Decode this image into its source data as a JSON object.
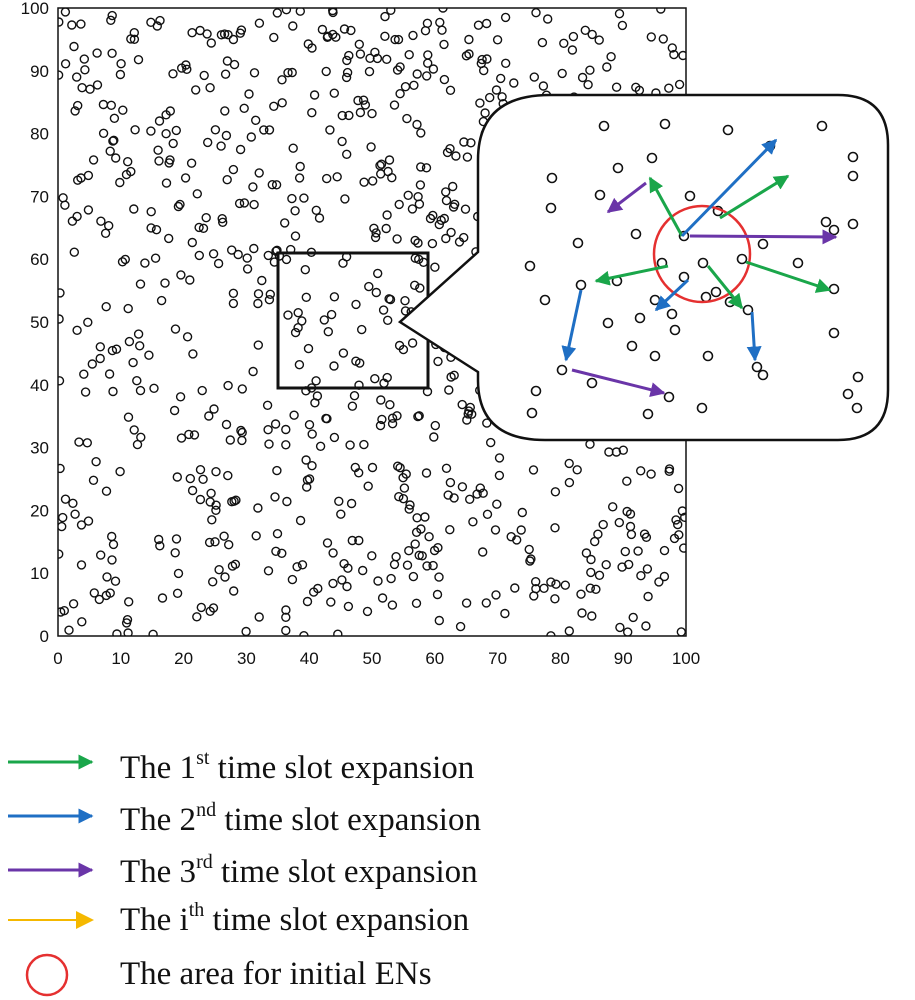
{
  "chart_data": {
    "type": "scatter",
    "title": "",
    "xlabel": "",
    "ylabel": "",
    "xlim": [
      0,
      100
    ],
    "ylim": [
      0,
      100
    ],
    "x_ticks": [
      "0",
      "10",
      "20",
      "30",
      "40",
      "50",
      "60",
      "70",
      "80",
      "90",
      "100"
    ],
    "y_ticks": [
      "0",
      "10",
      "20",
      "30",
      "40",
      "50",
      "60",
      "70",
      "80",
      "90",
      "100"
    ],
    "grid": false,
    "marker": "open-circle",
    "node_count": 900,
    "zoom_region": {
      "x": [
        36,
        60
      ],
      "y": [
        40,
        61
      ]
    },
    "legend": [
      {
        "prefix": "The 1",
        "sup": "st",
        "suffix": " time slot expansion",
        "color": "#1aa64a",
        "symbol": "arrow"
      },
      {
        "prefix": "The 2",
        "sup": "nd",
        "suffix": " time slot expansion",
        "color": "#1f6fc4",
        "symbol": "arrow"
      },
      {
        "prefix": "The 3",
        "sup": "rd",
        "suffix": " time slot expansion",
        "color": "#6a35a8",
        "symbol": "arrow"
      },
      {
        "prefix": "The i",
        "sup": "th",
        "suffix": " time slot expansion",
        "color": "#f5b800",
        "symbol": "arrow"
      },
      {
        "prefix": "The area for initial ENs",
        "sup": "",
        "suffix": "",
        "color": "#e53030",
        "symbol": "circle"
      }
    ],
    "colors": {
      "first": "#1aa64a",
      "second": "#1f6fc4",
      "third": "#6a35a8",
      "ith": "#f5b800",
      "area": "#e53030"
    }
  }
}
